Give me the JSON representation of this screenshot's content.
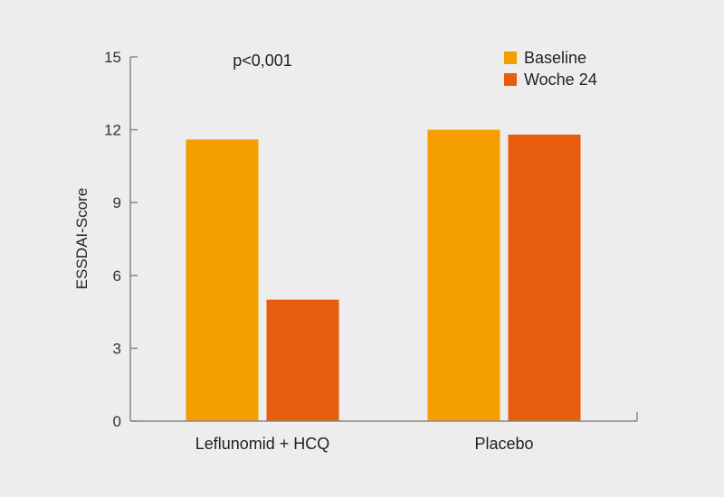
{
  "chart_data": {
    "type": "bar",
    "title": "",
    "xlabel": "",
    "ylabel": "ESSDAI-Score",
    "ylim": [
      0,
      15
    ],
    "yticks": [
      0,
      3,
      6,
      9,
      12,
      15
    ],
    "grid": false,
    "legend_position": "top-right",
    "categories": [
      "Leflunomid + HCQ",
      "Placebo"
    ],
    "series": [
      {
        "name": "Baseline",
        "color": "#f59e00",
        "values": [
          11.6,
          12.0
        ]
      },
      {
        "name": "Woche 24",
        "color": "#e85c0d",
        "values": [
          5.0,
          11.8
        ]
      }
    ],
    "annotations": [
      {
        "text": "p<0,001",
        "category": "Leflunomid + HCQ"
      }
    ]
  },
  "colors": {
    "background": "#ededed",
    "axis": "#888888"
  }
}
